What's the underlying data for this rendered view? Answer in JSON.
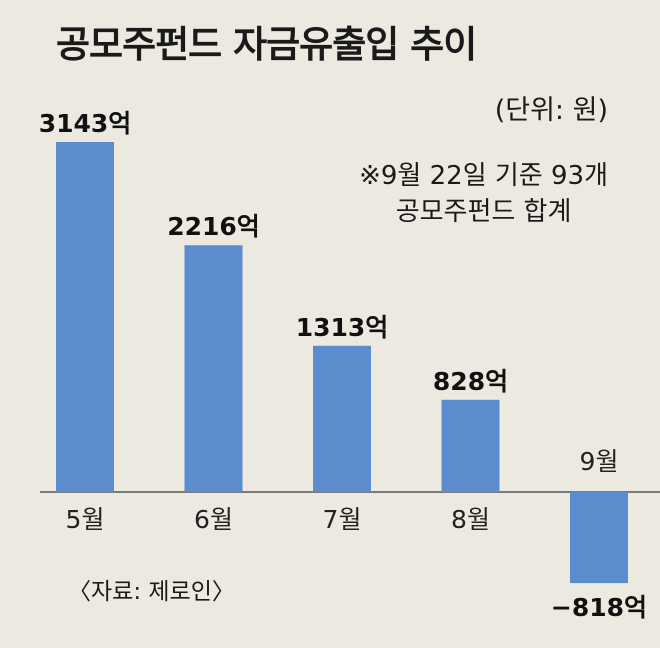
{
  "header": {
    "title": "공모주펀드 자금유출입 추이"
  },
  "notes": {
    "unit": "(단위: 원)",
    "footnote_line1": "※9월 22일 기준 93개",
    "footnote_line2": "공모주펀드 합계"
  },
  "source": "〈자료: 제로인〉",
  "chart_data": {
    "type": "bar",
    "title": "공모주펀드 자금유출입 추이",
    "xlabel": "",
    "ylabel": "",
    "unit": "억 원",
    "categories": [
      "5월",
      "6월",
      "7월",
      "8월",
      "9월"
    ],
    "values": [
      3143,
      2216,
      1313,
      828,
      -818
    ],
    "value_labels": [
      "3143억",
      "2216억",
      "1313억",
      "828억",
      "−818억"
    ],
    "ylim": [
      -818,
      3143
    ],
    "grid": false,
    "legend": "none",
    "colors": {
      "bar": "#5b8cce",
      "background": "#ece9e0",
      "baseline": "#555555"
    }
  }
}
